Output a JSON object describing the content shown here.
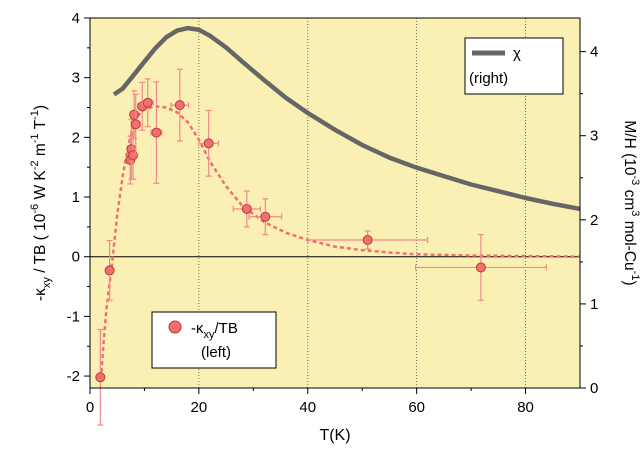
{
  "chart_data": {
    "type": "scatter",
    "xlabel": "T(K)",
    "ylabel_left": "-κ_xy / TB ( 10^-6 W K^-2 m^-1 T^-1)",
    "ylabel_right": "M/H (10^-3 cm^3 mol-Cu^-1)",
    "xlim": [
      0,
      90
    ],
    "ylim_left": [
      -2.2,
      4
    ],
    "ylim_right": [
      0,
      4.4
    ],
    "x_ticks": [
      0,
      20,
      40,
      60,
      80
    ],
    "y_ticks_left": [
      -2,
      -1,
      0,
      1,
      2,
      3,
      4
    ],
    "y_ticks_right": [
      0,
      1,
      2,
      3,
      4
    ],
    "grid": "vertical dotted lines at x = 20, 40, 60, 80; solid horizontal line at y = 0",
    "background": "#fbf0b4",
    "legend": [
      {
        "label": "χ",
        "sublabel": "(right)",
        "position": "top-right",
        "color": "#666666"
      },
      {
        "label": "-κ_xy/TB",
        "sublabel": "(left)",
        "position": "bottom-left",
        "color": "#f07070"
      }
    ],
    "series": [
      {
        "name": "-κ_xy/TB",
        "axis": "left",
        "style": "markers with error bars",
        "color": "#f07070",
        "points": [
          {
            "x": 1.9,
            "y": -2.02,
            "xerr": 0.3,
            "yerr": 0.8
          },
          {
            "x": 3.6,
            "y": -0.23,
            "xerr": 0.5,
            "yerr": 0.5
          },
          {
            "x": 7.4,
            "y": 1.62,
            "xerr": 0.5,
            "yerr": 0.4
          },
          {
            "x": 7.6,
            "y": 1.8,
            "xerr": 0.5,
            "yerr": 0.5
          },
          {
            "x": 7.9,
            "y": 1.7,
            "xerr": 0.6,
            "yerr": 0.4
          },
          {
            "x": 8.1,
            "y": 2.38,
            "xerr": 0.6,
            "yerr": 0.4
          },
          {
            "x": 8.4,
            "y": 2.22,
            "xerr": 0.8,
            "yerr": 0.5
          },
          {
            "x": 9.6,
            "y": 2.52,
            "xerr": 0.8,
            "yerr": 0.4
          },
          {
            "x": 10.6,
            "y": 2.58,
            "xerr": 1.0,
            "yerr": 0.4
          },
          {
            "x": 12.2,
            "y": 2.08,
            "xerr": 1.0,
            "yerr": 0.85
          },
          {
            "x": 16.5,
            "y": 2.54,
            "xerr": 1.6,
            "yerr": 0.6
          },
          {
            "x": 21.8,
            "y": 1.9,
            "xerr": 1.8,
            "yerr": 0.55
          },
          {
            "x": 28.8,
            "y": 0.8,
            "xerr": 2.5,
            "yerr": 0.3
          },
          {
            "x": 32.2,
            "y": 0.67,
            "xerr": 3.0,
            "yerr": 0.3
          },
          {
            "x": 51.0,
            "y": 0.28,
            "xerr": 11.0,
            "yerr": 0.15
          },
          {
            "x": 71.8,
            "y": -0.18,
            "xerr": 12.0,
            "yerr": 0.55
          }
        ]
      },
      {
        "name": "χ",
        "axis": "right",
        "style": "thick solid line",
        "color": "#666666",
        "x": [
          4.4,
          6,
          8,
          10,
          12,
          14,
          16,
          18,
          20,
          22,
          25,
          28,
          32,
          36,
          40,
          45,
          50,
          55,
          60,
          65,
          70,
          75,
          80,
          85,
          90
        ],
        "y": [
          3.49,
          3.56,
          3.72,
          3.88,
          4.04,
          4.17,
          4.25,
          4.28,
          4.26,
          4.19,
          4.05,
          3.88,
          3.66,
          3.45,
          3.27,
          3.07,
          2.89,
          2.74,
          2.62,
          2.52,
          2.42,
          2.34,
          2.26,
          2.19,
          2.13
        ]
      },
      {
        "name": "fit",
        "axis": "left",
        "style": "dashed",
        "color": "#f07070",
        "x": [
          2,
          2.5,
          3,
          4,
          5,
          6,
          7,
          8,
          9,
          10,
          12,
          14,
          16,
          18,
          20,
          22,
          25,
          28,
          32,
          36,
          40,
          45,
          50,
          55,
          60,
          70,
          80,
          90
        ],
        "y": [
          -2.05,
          -1.45,
          -0.9,
          -0.15,
          0.7,
          1.35,
          1.85,
          2.2,
          2.38,
          2.47,
          2.52,
          2.5,
          2.42,
          2.25,
          1.96,
          1.6,
          1.18,
          0.85,
          0.58,
          0.4,
          0.28,
          0.17,
          0.11,
          0.07,
          0.04,
          0.02,
          0.01,
          0.0
        ]
      }
    ]
  }
}
